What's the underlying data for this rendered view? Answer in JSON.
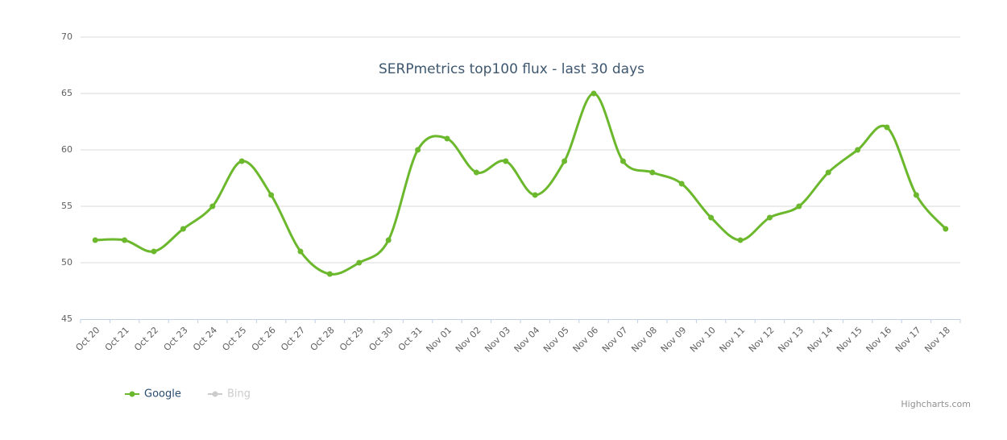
{
  "chart_data": {
    "type": "spline",
    "title": "SERPmetrics top100 flux - last 30 days",
    "categories": [
      "Oct 20",
      "Oct 21",
      "Oct 22",
      "Oct 23",
      "Oct 24",
      "Oct 25",
      "Oct 26",
      "Oct 27",
      "Oct 28",
      "Oct 29",
      "Oct 30",
      "Oct 31",
      "Nov 01",
      "Nov 02",
      "Nov 03",
      "Nov 04",
      "Nov 05",
      "Nov 06",
      "Nov 07",
      "Nov 08",
      "Nov 09",
      "Nov 10",
      "Nov 11",
      "Nov 12",
      "Nov 13",
      "Nov 14",
      "Nov 15",
      "Nov 16",
      "Nov 17",
      "Nov 18"
    ],
    "series": [
      {
        "name": "Google",
        "color": "#6bb82d",
        "visible": true,
        "values": [
          52,
          52,
          51,
          53,
          55,
          59,
          56,
          51,
          49,
          50,
          52,
          60,
          61,
          58,
          59,
          56,
          59,
          65,
          59,
          58,
          57,
          54,
          52,
          54,
          55,
          58,
          60,
          62,
          56,
          53
        ]
      },
      {
        "name": "Bing",
        "color": "#cccccc",
        "visible": false,
        "values": [
          null,
          null,
          null,
          null,
          null,
          null,
          null,
          null,
          null,
          null,
          null,
          null,
          null,
          null,
          null,
          null,
          null,
          null,
          null,
          null,
          null,
          null,
          null,
          null,
          null,
          null,
          null,
          null,
          null,
          null
        ]
      }
    ],
    "ylim": [
      45,
      70
    ],
    "yticks": [
      45,
      50,
      55,
      60,
      65,
      70
    ],
    "grid": true,
    "legend": "bottom-left",
    "credits": "Highcharts.com"
  }
}
